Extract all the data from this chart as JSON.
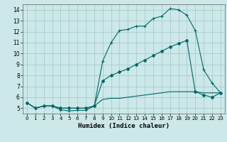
{
  "xlabel": "Humidex (Indice chaleur)",
  "bg_color": "#cce8e8",
  "grid_color": "#aacccc",
  "line_color": "#006666",
  "xlim": [
    -0.5,
    23.5
  ],
  "ylim": [
    4.5,
    14.5
  ],
  "xticks": [
    0,
    1,
    2,
    3,
    4,
    5,
    6,
    7,
    8,
    9,
    10,
    11,
    12,
    13,
    14,
    15,
    16,
    17,
    18,
    19,
    20,
    21,
    22,
    23
  ],
  "yticks": [
    5,
    6,
    7,
    8,
    9,
    10,
    11,
    12,
    13,
    14
  ],
  "curve1_x": [
    0,
    1,
    2,
    3,
    4,
    5,
    6,
    7,
    8,
    9,
    10,
    11,
    12,
    13,
    14,
    15,
    16,
    17,
    18,
    19,
    20,
    21,
    22,
    23
  ],
  "curve1_y": [
    5.5,
    5.0,
    5.2,
    5.2,
    4.85,
    4.75,
    4.8,
    4.8,
    5.2,
    9.3,
    11.0,
    12.1,
    12.2,
    12.5,
    12.5,
    13.2,
    13.4,
    14.1,
    14.0,
    13.5,
    12.1,
    8.5,
    7.3,
    6.4
  ],
  "curve2_x": [
    0,
    1,
    2,
    3,
    4,
    5,
    6,
    7,
    8,
    9,
    10,
    11,
    12,
    13,
    14,
    15,
    16,
    17,
    18,
    19,
    20,
    21,
    22,
    23
  ],
  "curve2_y": [
    5.5,
    5.0,
    5.2,
    5.2,
    5.0,
    5.0,
    5.0,
    5.0,
    5.2,
    7.5,
    8.0,
    8.3,
    8.6,
    9.0,
    9.4,
    9.8,
    10.2,
    10.6,
    10.9,
    11.2,
    6.5,
    6.2,
    6.0,
    6.4
  ],
  "curve3_x": [
    0,
    1,
    2,
    3,
    4,
    5,
    6,
    7,
    8,
    9,
    10,
    11,
    12,
    13,
    14,
    15,
    16,
    17,
    18,
    19,
    20,
    21,
    22,
    23
  ],
  "curve3_y": [
    5.5,
    5.0,
    5.2,
    5.2,
    5.0,
    5.0,
    5.0,
    5.0,
    5.2,
    5.8,
    5.9,
    5.9,
    6.0,
    6.1,
    6.2,
    6.3,
    6.4,
    6.5,
    6.5,
    6.5,
    6.5,
    6.4,
    6.4,
    6.4
  ]
}
